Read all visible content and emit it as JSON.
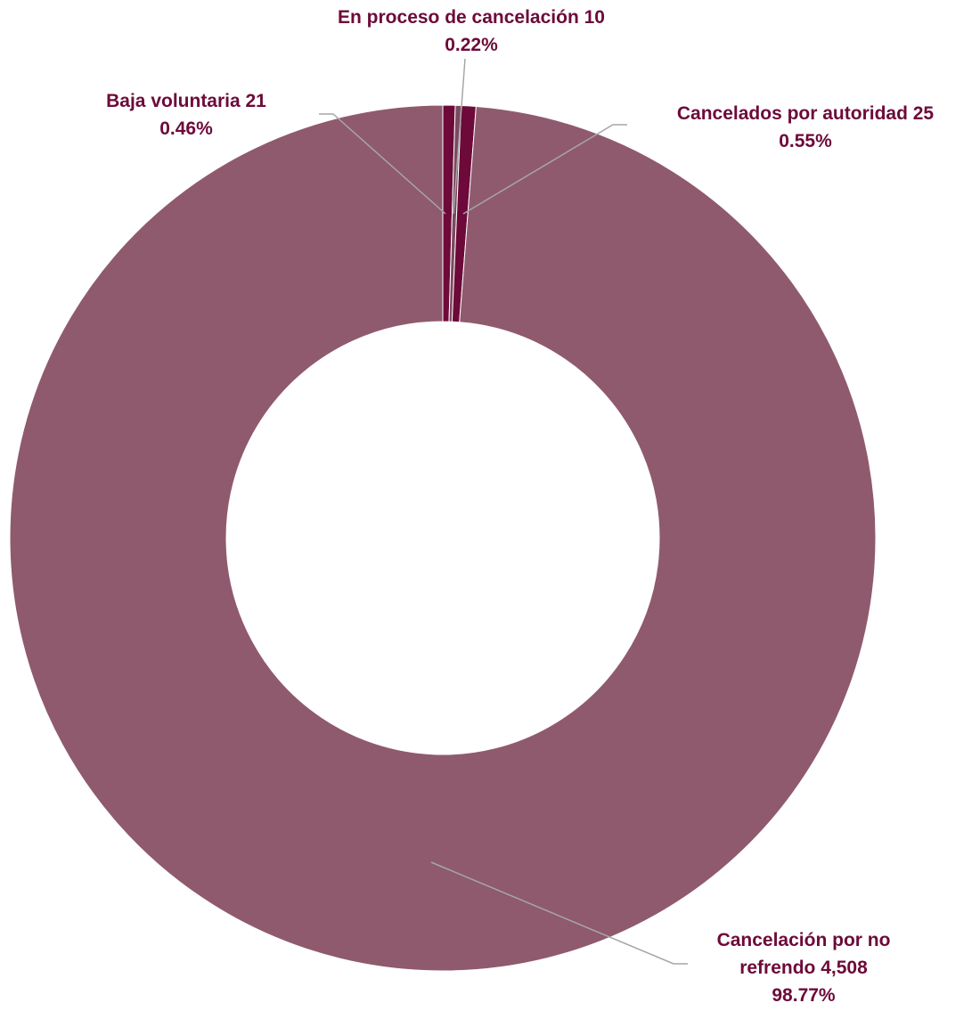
{
  "chart_data": {
    "type": "pie",
    "variant": "donut",
    "title": "",
    "legend": "none",
    "start_angle": "top",
    "direction": "clockwise",
    "slices": [
      {
        "name": "Baja voluntaria",
        "value": 21,
        "percent": 0.46,
        "label_line1": "Baja voluntaria 21",
        "label_line2": "0.46%",
        "color": "#6D0A3A"
      },
      {
        "name": "En proceso de cancelación",
        "value": 10,
        "percent": 0.22,
        "label_line1": "En proceso de cancelación 10",
        "label_line2": "0.22%",
        "color": "#7A4A60"
      },
      {
        "name": "Cancelados por autoridad",
        "value": 25,
        "percent": 0.55,
        "label_line1": "Cancelados por autoridad 25",
        "label_line2": "0.55%",
        "color": "#6D0A3A"
      },
      {
        "name": "Cancelación por no refrendo",
        "value": 4508,
        "percent": 98.77,
        "label_line1": "Cancelación por no",
        "label_line2": "refrendo 4,508",
        "label_line3": "98.77%",
        "color": "#8F5A6E"
      }
    ],
    "colors": {
      "label_text": "#6D0A3A",
      "leader_line": "#A6A6A6",
      "slice_border": "#FFFFFF",
      "background": "#FFFFFF"
    }
  }
}
